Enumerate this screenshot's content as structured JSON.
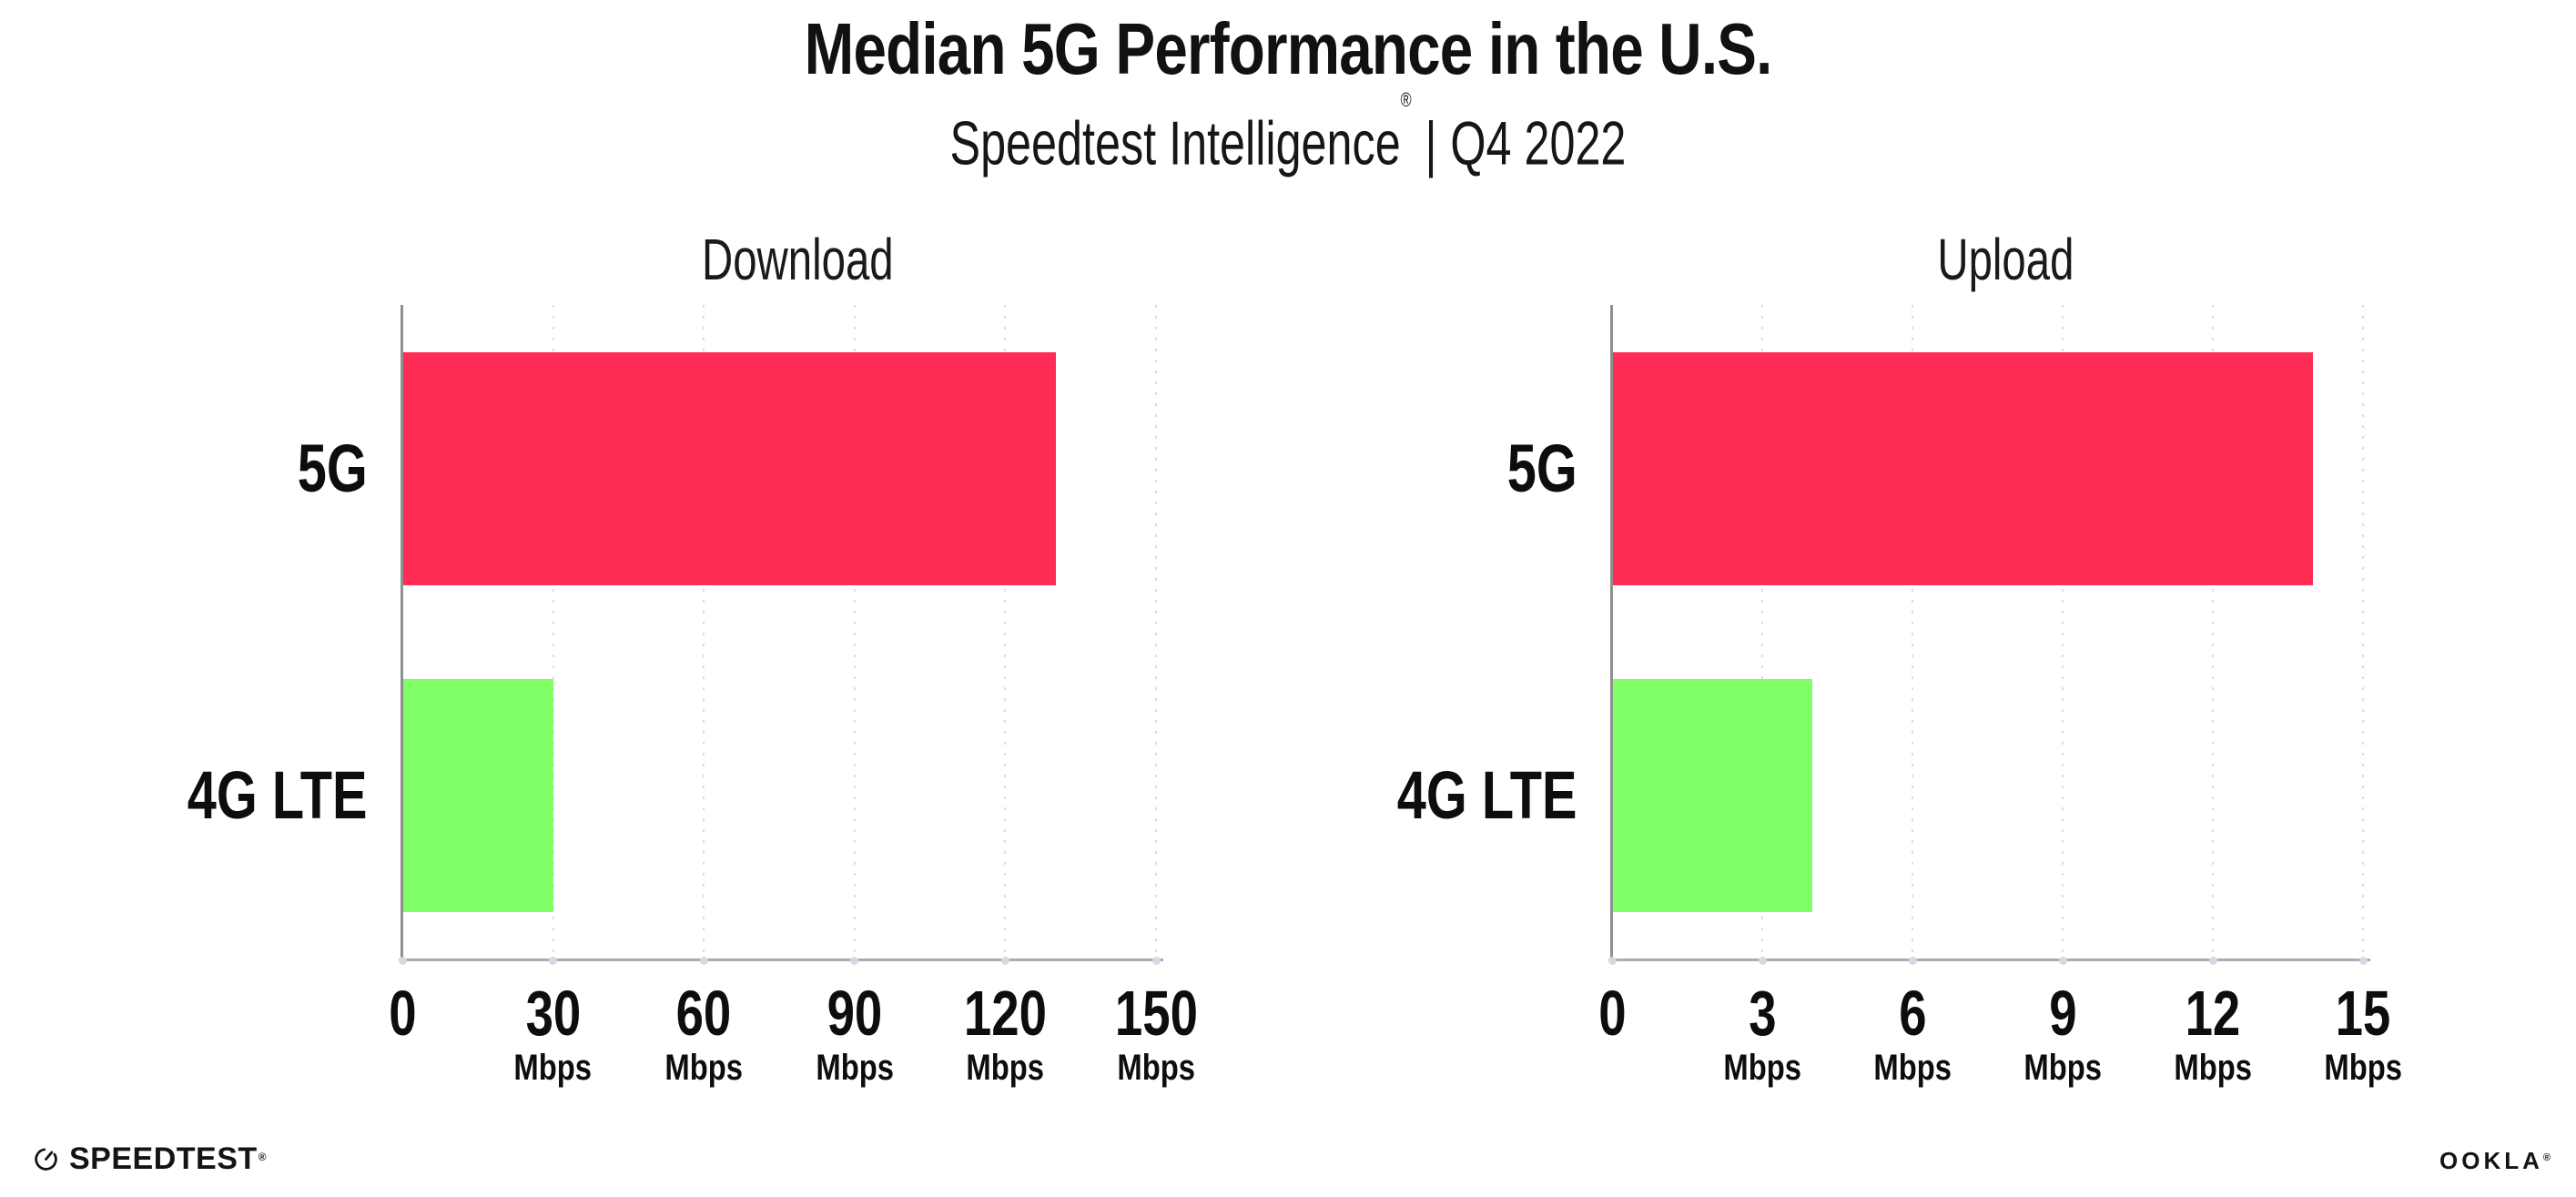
{
  "header": {
    "title": "Median 5G Performance in the U.S.",
    "subtitle_brand": "Speedtest Intelligence",
    "subtitle_reg": "®",
    "subtitle_sep": "|",
    "subtitle_period": "Q4 2022"
  },
  "chart_data": [
    {
      "type": "bar",
      "orientation": "horizontal",
      "title": "Download",
      "categories": [
        "5G",
        "4G LTE"
      ],
      "values": [
        130,
        30
      ],
      "unit": "Mbps",
      "xlim": [
        0,
        150
      ],
      "xticks": [
        0,
        30,
        60,
        90,
        120,
        150
      ],
      "bar_colors": [
        "#FF2D55",
        "#80FF66"
      ],
      "grid": "dotted-vertical",
      "legend": "none"
    },
    {
      "type": "bar",
      "orientation": "horizontal",
      "title": "Upload",
      "categories": [
        "5G",
        "4G LTE"
      ],
      "values": [
        14,
        4
      ],
      "unit": "Mbps",
      "xlim": [
        0,
        15
      ],
      "xticks": [
        0,
        3,
        6,
        9,
        12,
        15
      ],
      "bar_colors": [
        "#FF2D55",
        "#80FF66"
      ],
      "grid": "dotted-vertical",
      "legend": "none"
    }
  ],
  "footer": {
    "speedtest_wordmark": "SPEEDTEST",
    "speedtest_reg": "®",
    "ookla_wordmark": "OOKLA",
    "ookla_reg": "®"
  },
  "colors": {
    "bar_5g": "#FF2D55",
    "bar_4g_lte": "#80FF66",
    "axis_line": "#8f8f8f",
    "gridline": "#dbdce8",
    "text": "#111111"
  }
}
